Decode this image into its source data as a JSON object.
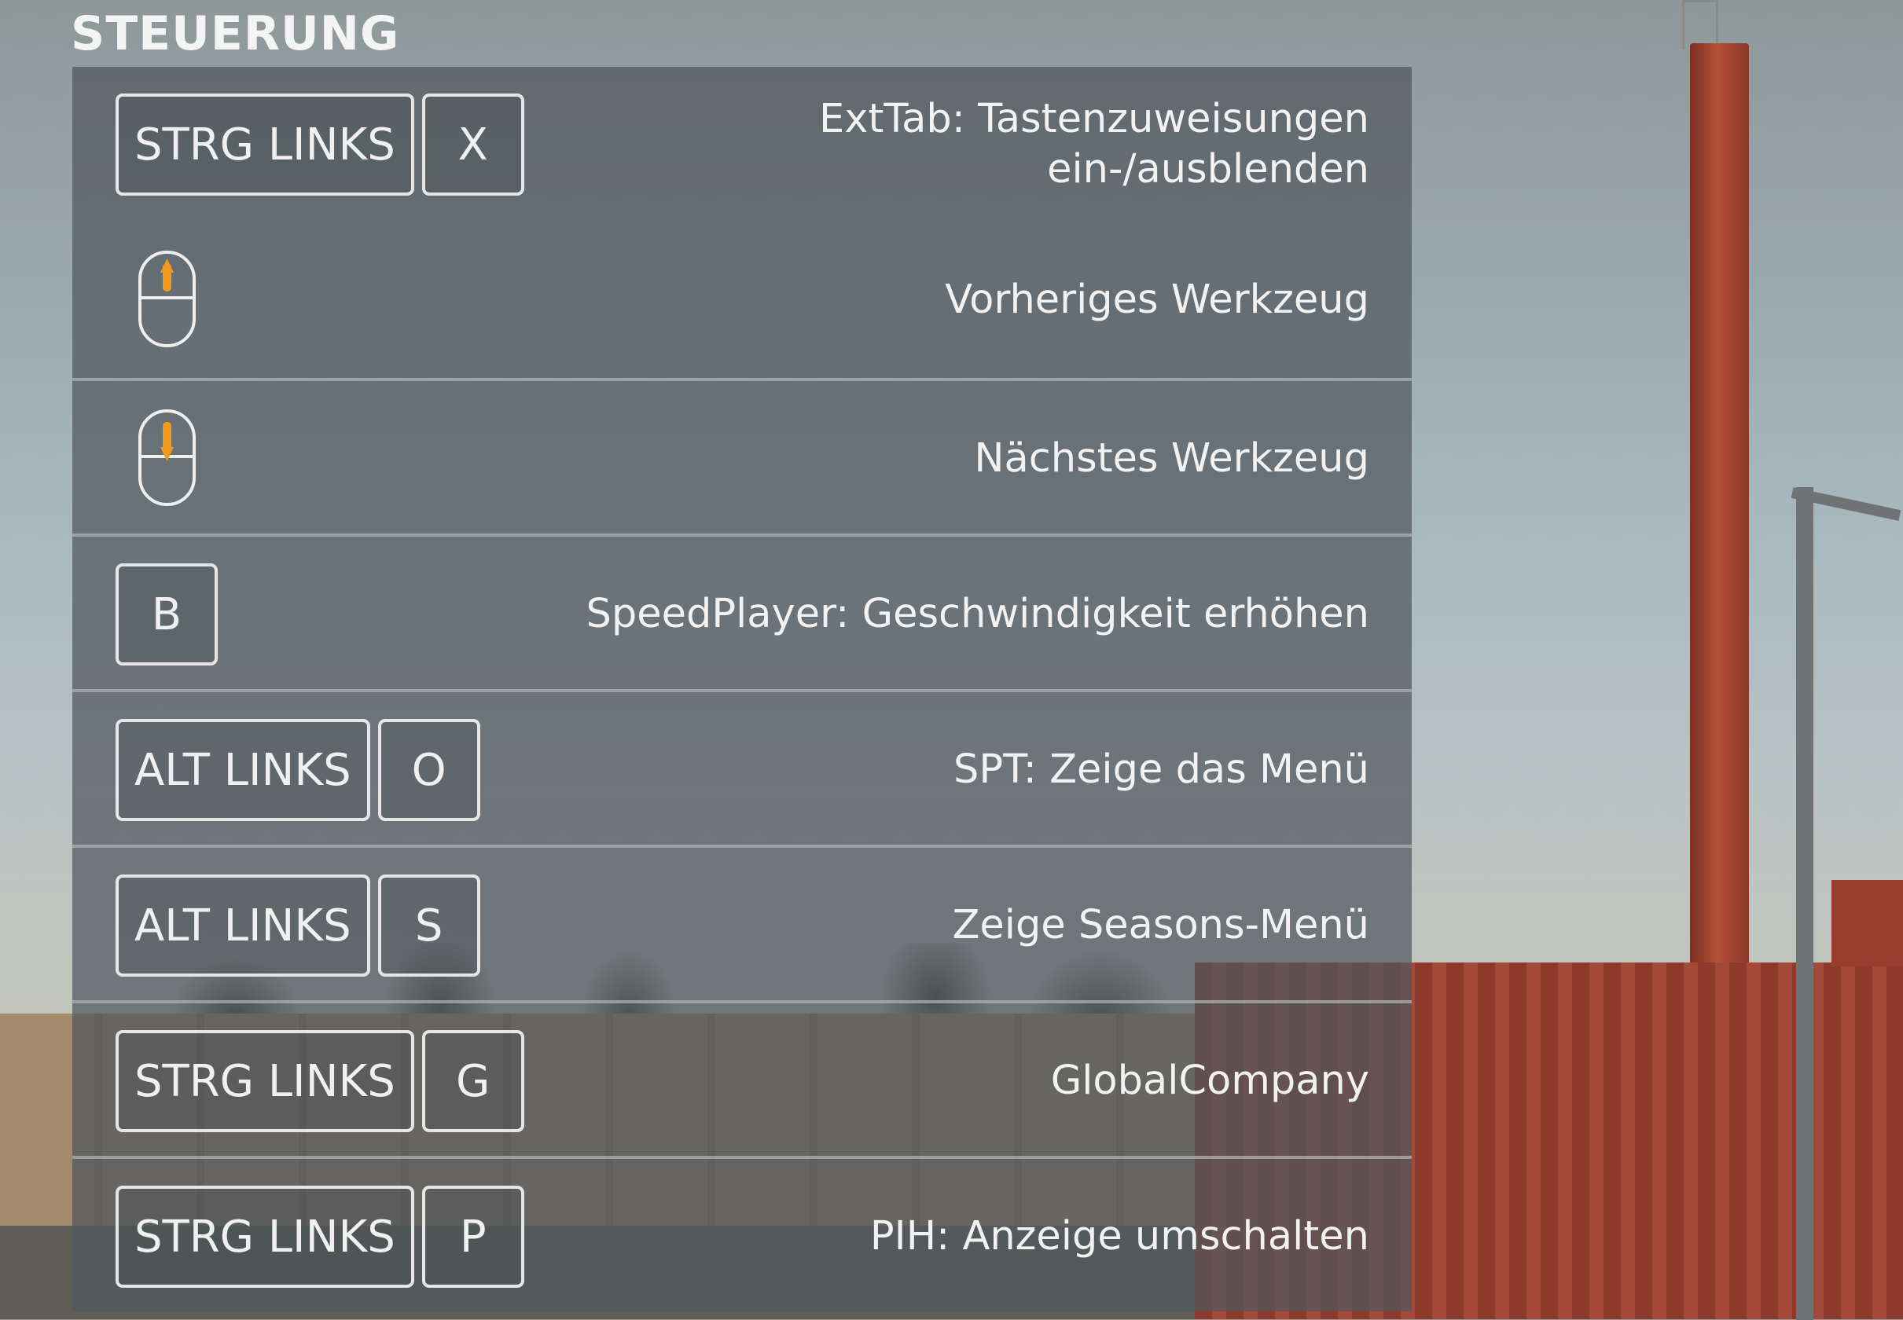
{
  "title": "STEUERUNG",
  "accent_color": "#f29a1e",
  "rows": [
    {
      "keys": [
        "STRG LINKS",
        "X"
      ],
      "label": "ExtTab: Tastenzuweisungen\nein-/ausblenden"
    },
    {
      "icon": "mouse-wheel-up-icon",
      "label": "Vorheriges Werkzeug"
    },
    {
      "icon": "mouse-wheel-down-icon",
      "label": "Nächstes Werkzeug"
    },
    {
      "keys": [
        "B"
      ],
      "label": "SpeedPlayer: Geschwindigkeit erhöhen"
    },
    {
      "keys": [
        "ALT LINKS",
        "O"
      ],
      "label": "SPT: Zeige das Menü"
    },
    {
      "keys": [
        "ALT LINKS",
        "S"
      ],
      "label": "Zeige Seasons-Menü"
    },
    {
      "keys": [
        "STRG LINKS",
        "G"
      ],
      "label": "GlobalCompany"
    },
    {
      "keys": [
        "STRG LINKS",
        "P"
      ],
      "label": "PIH: Anzeige umschalten"
    }
  ]
}
